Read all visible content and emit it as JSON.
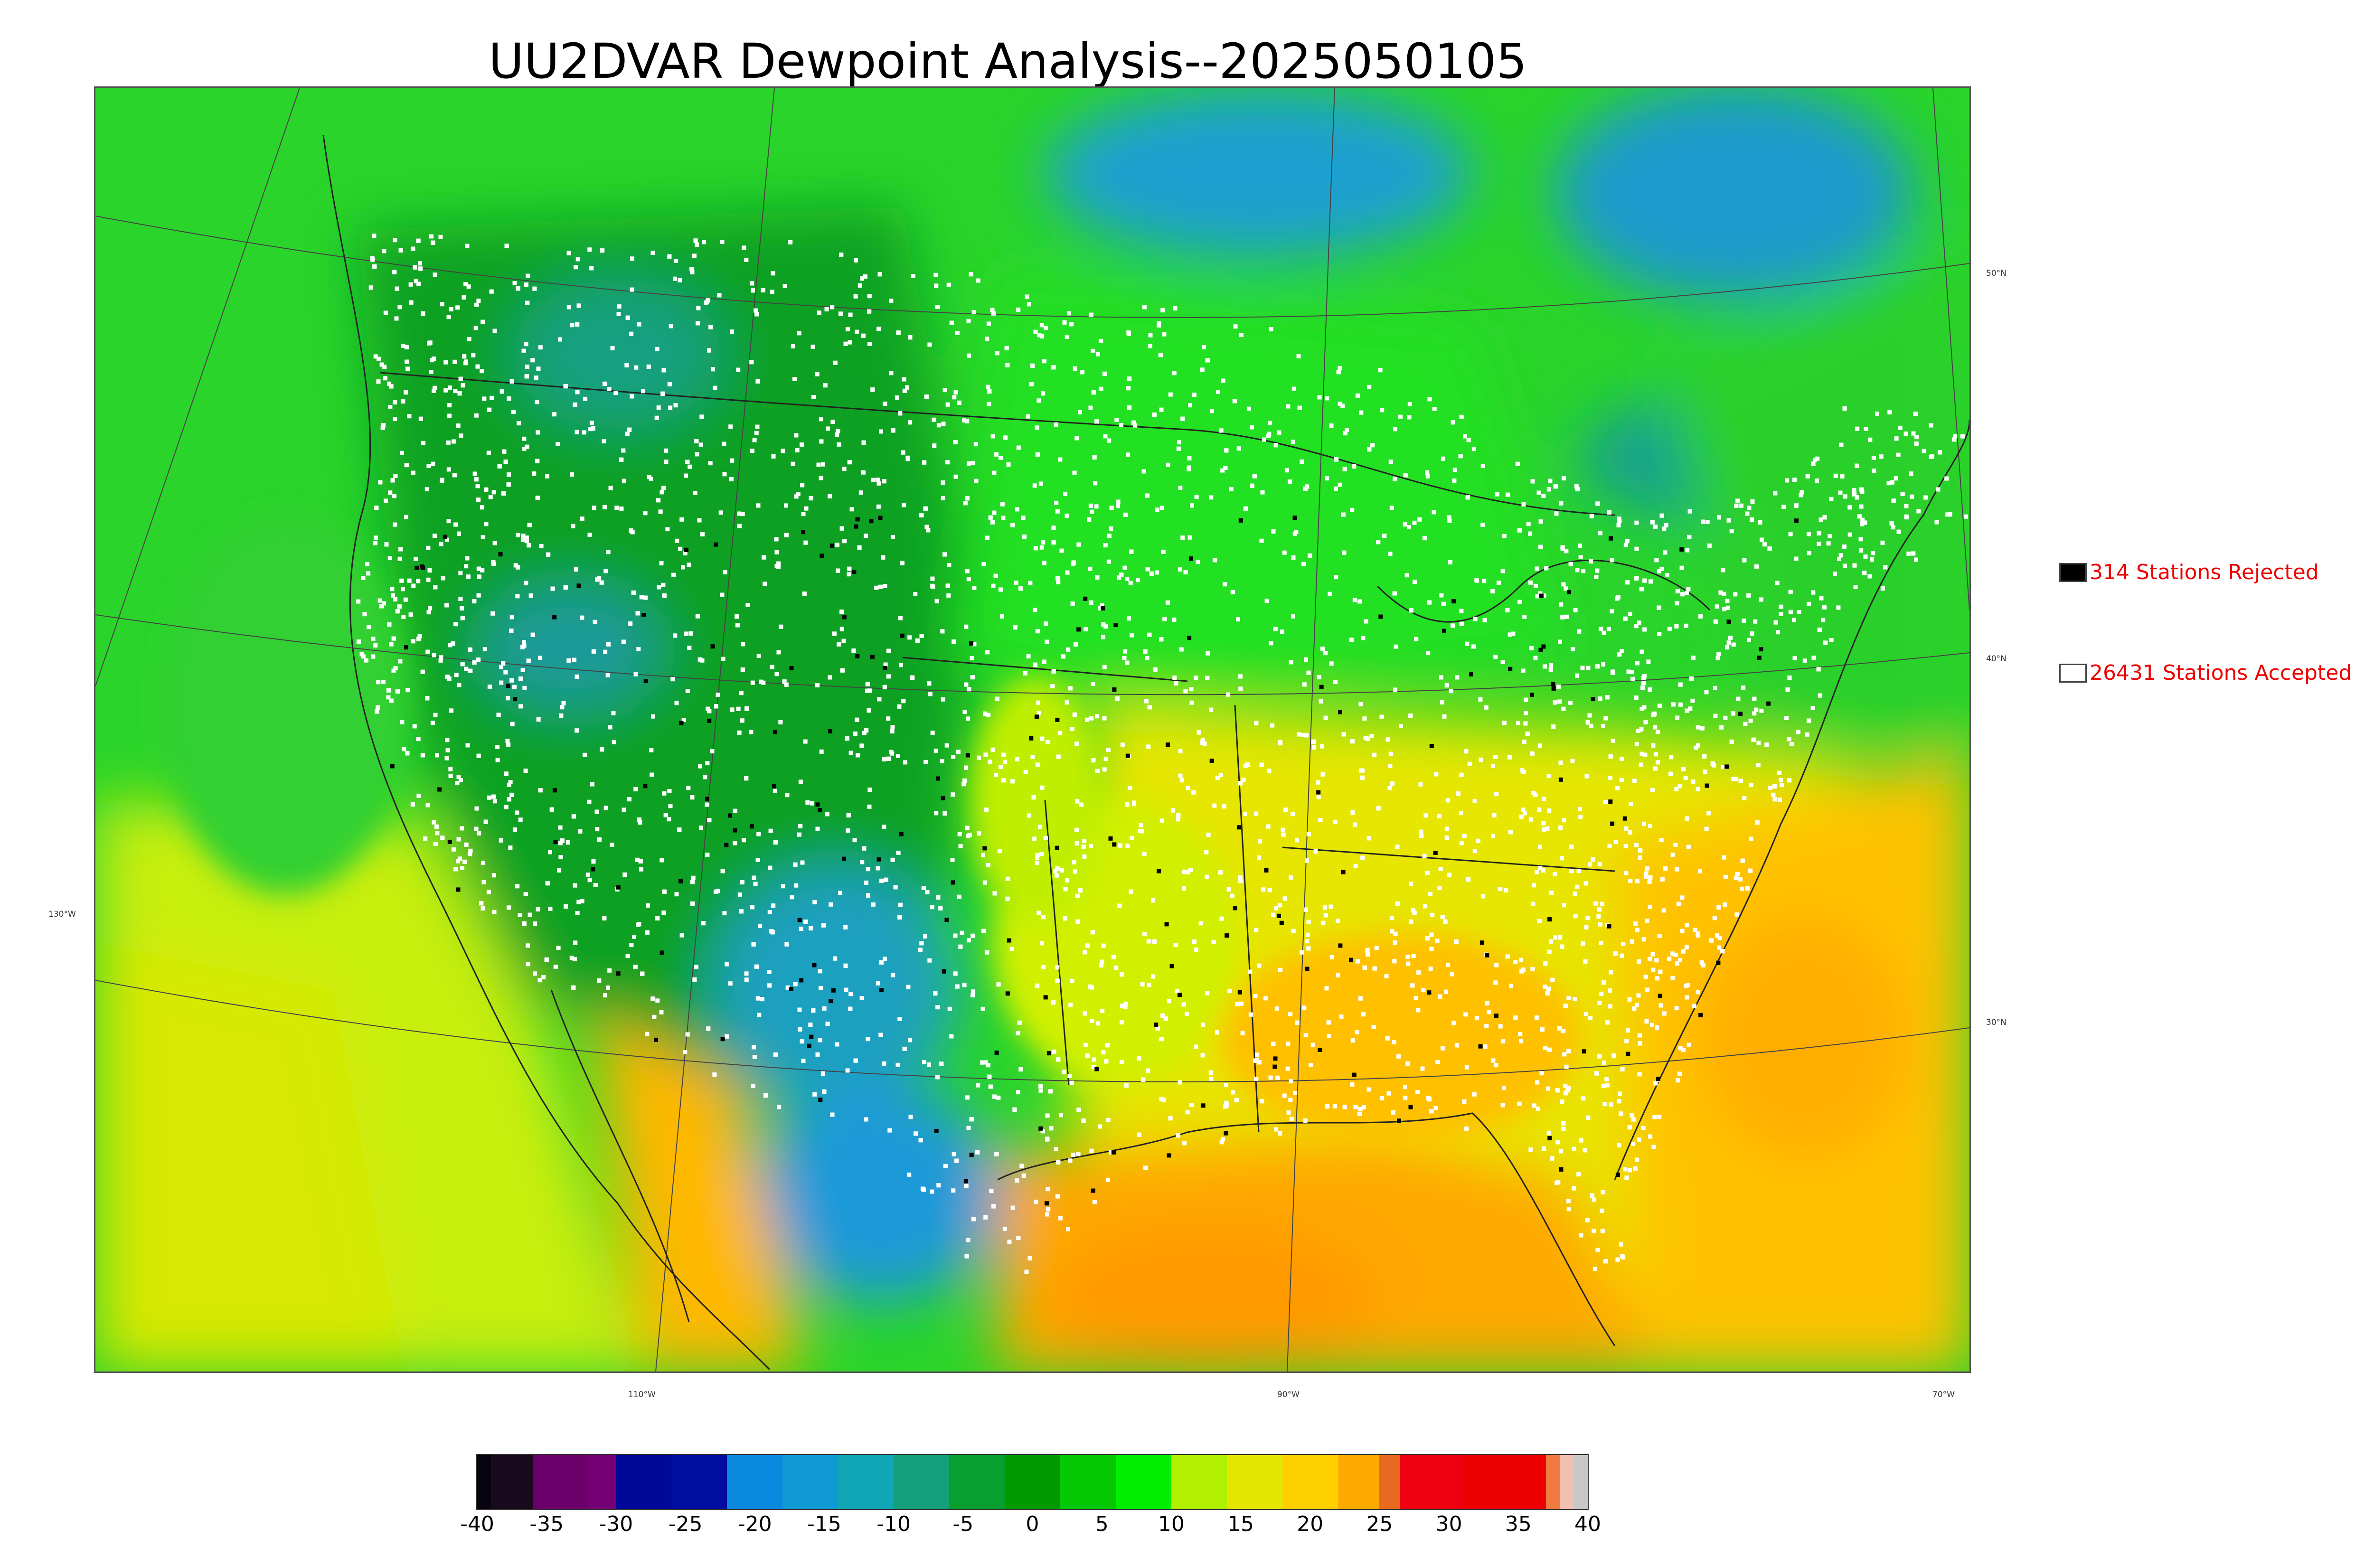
{
  "title": "UU2DVAR Dewpoint Analysis--2025050105",
  "legend": {
    "rejected": {
      "label": "314 Stations Rejected",
      "color": "#000000"
    },
    "accepted": {
      "label": "26431 Stations Accepted",
      "color": "#ffffff"
    }
  },
  "graticule": {
    "latitudes": [
      "50°N",
      "40°N",
      "30°N"
    ],
    "longitudes": [
      "130°W",
      "110°W",
      "90°W",
      "70°W"
    ]
  },
  "colorbar": {
    "ticks": [
      "-40",
      "-35",
      "-30",
      "-25",
      "-20",
      "-15",
      "-10",
      "-5",
      "0",
      "5",
      "10",
      "15",
      "20",
      "25",
      "30",
      "35",
      "40"
    ],
    "segments": [
      {
        "from": -40,
        "to": -39,
        "color": "#08040f"
      },
      {
        "from": -39,
        "to": -36,
        "color": "#1a0a1e"
      },
      {
        "from": -36,
        "to": -32,
        "color": "#6b006b"
      },
      {
        "from": -32,
        "to": -30,
        "color": "#750075"
      },
      {
        "from": -30,
        "to": -26,
        "color": "#00089a"
      },
      {
        "from": -26,
        "to": -22,
        "color": "#000d9f"
      },
      {
        "from": -22,
        "to": -18,
        "color": "#0a8adf"
      },
      {
        "from": -18,
        "to": -14,
        "color": "#109ad5"
      },
      {
        "from": -14,
        "to": -10,
        "color": "#10a6b5"
      },
      {
        "from": -10,
        "to": -6,
        "color": "#13a07a"
      },
      {
        "from": -6,
        "to": -2,
        "color": "#06a030"
      },
      {
        "from": -2,
        "to": 2,
        "color": "#009a00"
      },
      {
        "from": 2,
        "to": 6,
        "color": "#04c804"
      },
      {
        "from": 6,
        "to": 10,
        "color": "#00ee00"
      },
      {
        "from": 10,
        "to": 14,
        "color": "#b0f000"
      },
      {
        "from": 14,
        "to": 18,
        "color": "#e4e800"
      },
      {
        "from": 18,
        "to": 22,
        "color": "#ffd000"
      },
      {
        "from": 22,
        "to": 25,
        "color": "#ffaa00"
      },
      {
        "from": 25,
        "to": 26.5,
        "color": "#e86a20"
      },
      {
        "from": 26.5,
        "to": 31,
        "color": "#ee0010"
      },
      {
        "from": 31,
        "to": 37,
        "color": "#ee0000"
      },
      {
        "from": 37,
        "to": 38,
        "color": "#f07a40"
      },
      {
        "from": 38,
        "to": 39,
        "color": "#f0c0b0"
      },
      {
        "from": 39,
        "to": 40,
        "color": "#c8c8c8"
      }
    ]
  },
  "colors": {
    "ocean_green": "#22cc22",
    "land_green": "#11a81a",
    "cold_blue": "#1a9ad8",
    "warm_yellow": "#e0e800",
    "hot_orange": "#ffa500",
    "station_accepted": "#ffffff",
    "station_rejected": "#000000"
  }
}
